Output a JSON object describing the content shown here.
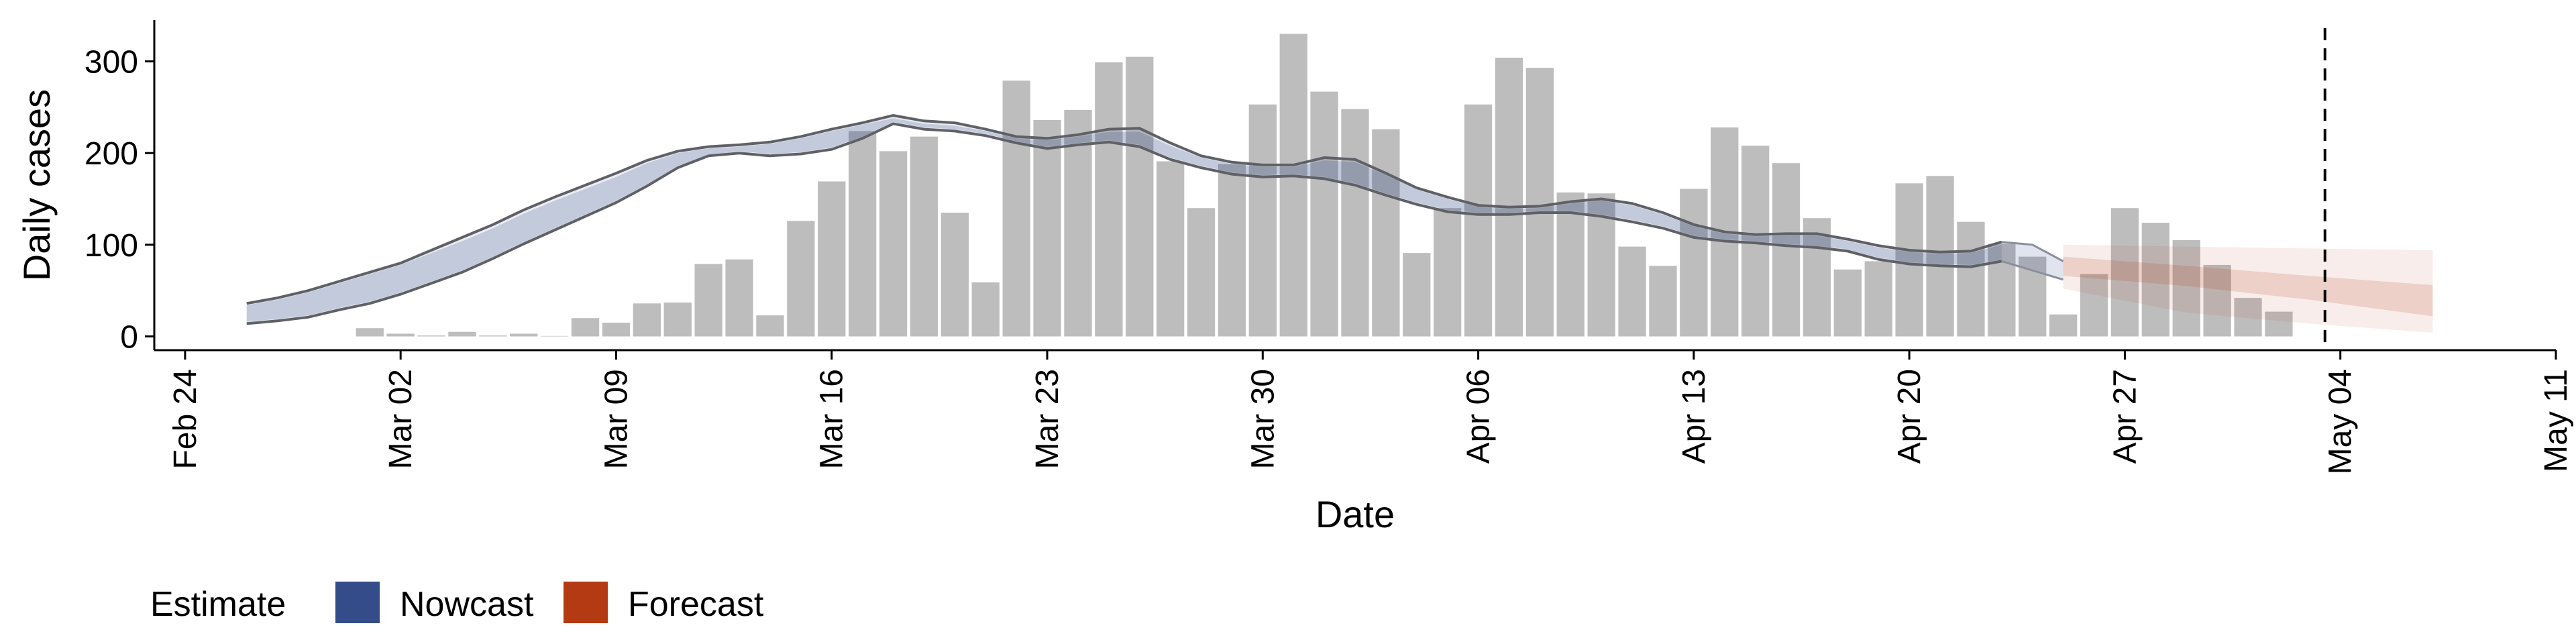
{
  "chart_data": {
    "type": "bar",
    "xlabel": "Date",
    "ylabel": "Daily cases",
    "ylim": [
      -15,
      345
    ],
    "y_ticks": [
      0,
      100,
      200,
      300
    ],
    "x_range_days": [
      -1,
      77
    ],
    "x_ticks": [
      {
        "day": 0,
        "label": "Feb 24"
      },
      {
        "day": 7,
        "label": "Mar 02"
      },
      {
        "day": 14,
        "label": "Mar 09"
      },
      {
        "day": 21,
        "label": "Mar 16"
      },
      {
        "day": 28,
        "label": "Mar 23"
      },
      {
        "day": 35,
        "label": "Mar 30"
      },
      {
        "day": 42,
        "label": "Apr 06"
      },
      {
        "day": 49,
        "label": "Apr 13"
      },
      {
        "day": 56,
        "label": "Apr 20"
      },
      {
        "day": 63,
        "label": "Apr 27"
      },
      {
        "day": 70,
        "label": "May 04"
      },
      {
        "day": 77,
        "label": "May 11"
      }
    ],
    "reference_line_day": 69.5,
    "daily_cases": {
      "start_day": 6,
      "values": [
        9,
        3,
        1,
        5,
        1,
        3,
        0,
        20,
        15,
        36,
        37,
        79,
        84,
        23,
        126,
        169,
        224,
        202,
        218,
        135,
        59,
        279,
        236,
        247,
        299,
        305,
        191,
        140,
        188,
        253,
        330,
        267,
        248,
        226,
        91,
        140,
        253,
        304,
        293,
        157,
        156,
        98,
        77,
        161,
        228,
        208,
        189,
        129,
        73,
        82,
        167,
        175,
        125,
        101,
        87,
        24,
        68,
        140,
        124,
        105,
        78,
        42,
        27
      ]
    },
    "estimates": [
      {
        "name": "Nowcast",
        "color": "#354c8a",
        "days": [
          2,
          3,
          4,
          5,
          6,
          7,
          8,
          9,
          10,
          11,
          12,
          13,
          14,
          15,
          16,
          17,
          18,
          19,
          20,
          21,
          22,
          23,
          24,
          25,
          26,
          27,
          28,
          29,
          30,
          31,
          32,
          33,
          34,
          35,
          36,
          37,
          38,
          39,
          40,
          41,
          42,
          43,
          44,
          45,
          46,
          47,
          48,
          49,
          50,
          51,
          52,
          53,
          54,
          55,
          56,
          57,
          58,
          59
        ],
        "upper": [
          36,
          42,
          50,
          60,
          70,
          80,
          94,
          108,
          122,
          138,
          152,
          165,
          178,
          192,
          202,
          207,
          209,
          212,
          218,
          226,
          233,
          241,
          235,
          233,
          226,
          218,
          216,
          220,
          226,
          227,
          211,
          197,
          190,
          187,
          187,
          195,
          193,
          178,
          162,
          152,
          143,
          141,
          142,
          147,
          150,
          145,
          135,
          122,
          114,
          111,
          112,
          112,
          106,
          99,
          94,
          92,
          93,
          103
        ],
        "lower": [
          14,
          17,
          21,
          29,
          36,
          46,
          58,
          70,
          85,
          101,
          116,
          131,
          146,
          164,
          184,
          197,
          200,
          197,
          199,
          204,
          216,
          232,
          226,
          224,
          219,
          211,
          205,
          209,
          212,
          207,
          193,
          184,
          177,
          174,
          175,
          172,
          165,
          154,
          144,
          136,
          133,
          133,
          135,
          135,
          131,
          125,
          118,
          108,
          104,
          102,
          99,
          97,
          93,
          84,
          79,
          77,
          76,
          82
        ],
        "band_upper": [
          34,
          40,
          48,
          58,
          68,
          78,
          91,
          104,
          118,
          134,
          148,
          161,
          174,
          189,
          200,
          205,
          207,
          210,
          216,
          224,
          231,
          238,
          232,
          230,
          224,
          216,
          214,
          218,
          223,
          223,
          208,
          195,
          188,
          185,
          185,
          192,
          190,
          176,
          160,
          150,
          141,
          139,
          140,
          145,
          148,
          143,
          133,
          120,
          112,
          109,
          110,
          110,
          104,
          97,
          92,
          90,
          91,
          100
        ],
        "band_lower": [
          16,
          19,
          23,
          31,
          38,
          48,
          60,
          72,
          87,
          103,
          118,
          133,
          148,
          166,
          186,
          198,
          202,
          199,
          201,
          206,
          218,
          234,
          228,
          226,
          221,
          213,
          207,
          211,
          214,
          209,
          195,
          186,
          179,
          176,
          177,
          174,
          167,
          156,
          146,
          138,
          135,
          135,
          137,
          137,
          133,
          127,
          120,
          110,
          106,
          104,
          101,
          99,
          95,
          86,
          81,
          79,
          78,
          84
        ],
        "extension": {
          "days": [
            59,
            60,
            61
          ],
          "upper": [
            103,
            100,
            82
          ],
          "lower": [
            82,
            72,
            62
          ]
        }
      },
      {
        "name": "Forecast",
        "color": "#b33a12",
        "days": [
          61,
          65,
          69,
          73
        ],
        "outer_upper": [
          100,
          98,
          96,
          94
        ],
        "outer_lower": [
          52,
          26,
          14,
          4
        ],
        "inner_upper": [
          87,
          77,
          66,
          56
        ],
        "inner_lower": [
          66,
          55,
          40,
          22
        ]
      }
    ],
    "legend": {
      "title": "Estimate",
      "position": "bottom-left",
      "entries": [
        {
          "label": "Nowcast",
          "color": "#354c8a"
        },
        {
          "label": "Forecast",
          "color": "#b33a12"
        }
      ]
    },
    "grid": false
  }
}
